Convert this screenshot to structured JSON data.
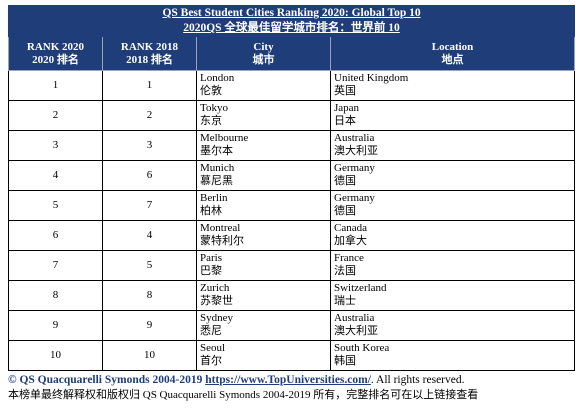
{
  "table": {
    "title_line1": "QS Best Student Cities Ranking 2020: Global Top 10",
    "title_line2": "2020QS 全球最佳留学城市排名：世界前 10",
    "headers": [
      {
        "en": "RANK 2020",
        "zh": "2020 排名"
      },
      {
        "en": "RANK 2018",
        "zh": "2018 排名"
      },
      {
        "en": "City",
        "zh": "城市"
      },
      {
        "en": "Location",
        "zh": "地点"
      }
    ],
    "rows": [
      {
        "rank2020": "1",
        "rank2018": "1",
        "city_en": "London",
        "city_zh": "伦敦",
        "loc_en": "United Kingdom",
        "loc_zh": "英国"
      },
      {
        "rank2020": "2",
        "rank2018": "2",
        "city_en": "Tokyo",
        "city_zh": "东京",
        "loc_en": "Japan",
        "loc_zh": "日本"
      },
      {
        "rank2020": "3",
        "rank2018": "3",
        "city_en": "Melbourne",
        "city_zh": "墨尔本",
        "loc_en": "Australia",
        "loc_zh": "澳大利亚"
      },
      {
        "rank2020": "4",
        "rank2018": "6",
        "city_en": "Munich",
        "city_zh": "慕尼黑",
        "loc_en": "Germany",
        "loc_zh": "德国"
      },
      {
        "rank2020": "5",
        "rank2018": "7",
        "city_en": "Berlin",
        "city_zh": "柏林",
        "loc_en": "Germany",
        "loc_zh": "德国"
      },
      {
        "rank2020": "6",
        "rank2018": "4",
        "city_en": "Montreal",
        "city_zh": "蒙特利尔",
        "loc_en": "Canada",
        "loc_zh": "加拿大"
      },
      {
        "rank2020": "7",
        "rank2018": "5",
        "city_en": "Paris",
        "city_zh": "巴黎",
        "loc_en": "France",
        "loc_zh": "法国"
      },
      {
        "rank2020": "8",
        "rank2018": "8",
        "city_en": "Zurich",
        "city_zh": "苏黎世",
        "loc_en": "Switzerland",
        "loc_zh": "瑞士"
      },
      {
        "rank2020": "9",
        "rank2018": "9",
        "city_en": "Sydney",
        "city_zh": "悉尼",
        "loc_en": "Australia",
        "loc_zh": "澳大利亚"
      },
      {
        "rank2020": "10",
        "rank2018": "10",
        "city_en": "Seoul",
        "city_zh": "首尔",
        "loc_en": "South Korea",
        "loc_zh": "韩国"
      }
    ]
  },
  "footer": {
    "copyright": "© QS Quacquarelli Symonds 2004-2019",
    "link": "https://www.TopUniversities.com/",
    "rights": ". All rights reserved.",
    "note_zh": "本榜单最终解释权和版权归 QS Quacquarelli Symonds 2004-2019 所有，完整排名可在以上链接查看"
  },
  "colors": {
    "header_bg": "#1f3d79",
    "header_text": "#ffffff",
    "link": "#1f3d79"
  }
}
